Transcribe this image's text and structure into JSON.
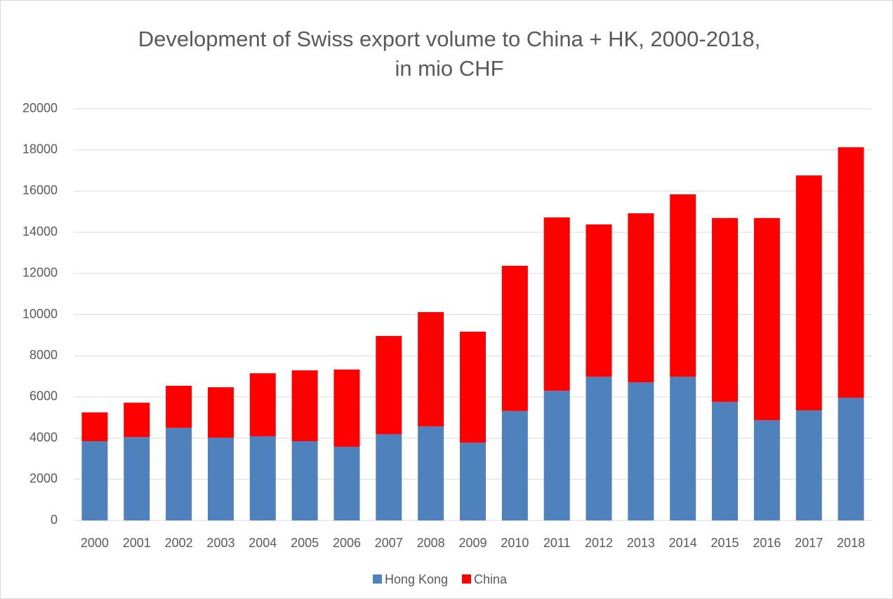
{
  "chart_data": {
    "type": "stacked_bar",
    "title": [
      "Development of Swiss export volume to China + HK, 2000-2018,",
      "in mio CHF"
    ],
    "categories": [
      "2000",
      "2001",
      "2002",
      "2003",
      "2004",
      "2005",
      "2006",
      "2007",
      "2008",
      "2009",
      "2010",
      "2011",
      "2012",
      "2013",
      "2014",
      "2015",
      "2016",
      "2017",
      "2018"
    ],
    "series": [
      {
        "name": "Hong Kong",
        "color": "#4f81bd",
        "values": [
          3850,
          4050,
          4500,
          4020,
          4090,
          3850,
          3580,
          4190,
          4570,
          3780,
          5320,
          6300,
          6980,
          6710,
          6980,
          5760,
          4870,
          5350,
          5960
        ]
      },
      {
        "name": "China",
        "color": "#ff0000",
        "values": [
          1400,
          1670,
          2040,
          2450,
          3060,
          3440,
          3750,
          4770,
          5550,
          5390,
          7050,
          8420,
          7400,
          8210,
          8860,
          8930,
          9820,
          11410,
          12170
        ]
      }
    ],
    "ylim": [
      0,
      20000
    ],
    "yticks": [
      0,
      2000,
      4000,
      6000,
      8000,
      10000,
      12000,
      14000,
      16000,
      18000,
      20000
    ],
    "grid": true,
    "legend": "bottom"
  }
}
